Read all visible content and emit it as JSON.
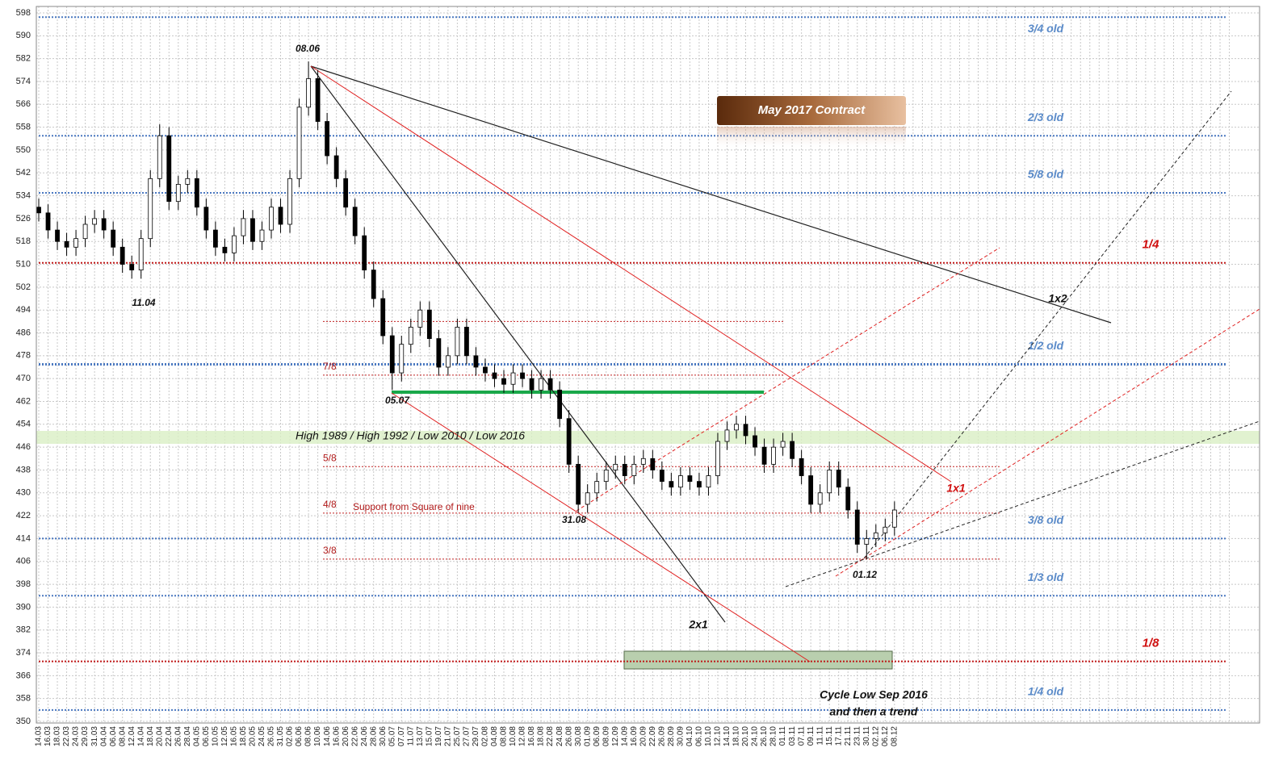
{
  "chart_data": {
    "type": "candlestick",
    "ylim": [
      350,
      598
    ],
    "yticks": [
      350,
      358,
      366,
      374,
      382,
      390,
      398,
      406,
      414,
      422,
      430,
      438,
      446,
      454,
      462,
      470,
      478,
      486,
      494,
      502,
      510,
      518,
      526,
      534,
      542,
      550,
      558,
      566,
      574,
      582,
      590,
      598
    ],
    "grid": true,
    "up_color": "#ffffff",
    "down_color": "#000000",
    "categories": [
      "14.03",
      "16.03",
      "18.03",
      "22.03",
      "24.03",
      "29.03",
      "31.03",
      "04.04",
      "06.04",
      "08.04",
      "12.04",
      "14.04",
      "18.04",
      "20.04",
      "22.04",
      "26.04",
      "28.04",
      "04.05",
      "06.05",
      "10.05",
      "12.05",
      "16.05",
      "18.05",
      "20.05",
      "24.05",
      "26.05",
      "31.05",
      "02.06",
      "06.06",
      "08.06",
      "10.06",
      "14.06",
      "16.06",
      "20.06",
      "22.06",
      "24.06",
      "28.06",
      "30.06",
      "05.07",
      "07.07",
      "11.07",
      "13.07",
      "15.07",
      "19.07",
      "21.07",
      "25.07",
      "27.07",
      "29.07",
      "02.08",
      "04.08",
      "08.08",
      "10.08",
      "12.08",
      "16.08",
      "18.08",
      "22.08",
      "24.08",
      "26.08",
      "30.08",
      "01.09",
      "06.09",
      "08.09",
      "12.09",
      "14.09",
      "16.09",
      "20.09",
      "22.09",
      "26.09",
      "28.09",
      "30.09",
      "04.10",
      "06.10",
      "10.10",
      "12.10",
      "14.10",
      "18.10",
      "20.10",
      "24.10",
      "26.10",
      "28.10",
      "01.11",
      "03.11",
      "07.11",
      "09.11",
      "11.11",
      "15.11",
      "17.11",
      "21.11",
      "23.11",
      "30.11",
      "02.12",
      "06.12",
      "08.12",
      null,
      null,
      null,
      null,
      null,
      null,
      null,
      null,
      null,
      null,
      null,
      null,
      null,
      null,
      null,
      null,
      null,
      null,
      null,
      null,
      null,
      null,
      null,
      null,
      null,
      null,
      null,
      null,
      null,
      null,
      null,
      null,
      null,
      null,
      null,
      null
    ],
    "open": [
      530,
      528,
      522,
      518,
      516,
      519,
      524,
      526,
      522,
      516,
      510,
      508,
      519,
      540,
      555,
      532,
      538,
      540,
      530,
      522,
      516,
      514,
      520,
      526,
      518,
      522,
      530,
      524,
      540,
      565,
      575,
      560,
      548,
      540,
      530,
      520,
      508,
      498,
      485,
      472,
      482,
      488,
      494,
      484,
      474,
      478,
      488,
      478,
      474,
      472,
      470,
      468,
      472,
      470,
      466,
      470,
      466,
      456,
      440,
      426,
      430,
      434,
      438,
      440,
      436,
      440,
      442,
      438,
      434,
      432,
      436,
      434,
      432,
      436,
      448,
      452,
      454,
      450,
      446,
      440,
      446,
      448,
      442,
      436,
      426,
      430,
      438,
      432,
      424,
      412,
      414,
      416,
      418,
      null,
      null,
      null,
      null,
      null,
      null,
      null,
      null,
      null,
      null,
      null,
      null,
      null,
      null,
      null,
      null,
      null,
      null,
      null,
      null,
      null,
      null,
      null,
      null,
      null,
      null,
      null,
      null,
      null,
      null,
      null,
      null,
      null,
      null,
      null,
      null
    ],
    "high": [
      533,
      531,
      525,
      521,
      522,
      527,
      529,
      529,
      525,
      519,
      513,
      522,
      543,
      559,
      558,
      541,
      543,
      543,
      533,
      525,
      519,
      523,
      529,
      529,
      525,
      533,
      533,
      543,
      568,
      581,
      578,
      563,
      551,
      543,
      533,
      523,
      511,
      501,
      488,
      485,
      491,
      497,
      497,
      487,
      481,
      491,
      491,
      481,
      477,
      475,
      473,
      475,
      475,
      473,
      473,
      473,
      469,
      459,
      443,
      433,
      437,
      441,
      443,
      443,
      443,
      445,
      445,
      441,
      437,
      439,
      439,
      437,
      439,
      451,
      455,
      457,
      457,
      453,
      449,
      449,
      451,
      451,
      445,
      439,
      433,
      441,
      441,
      435,
      427,
      417,
      419,
      421,
      427,
      null,
      null,
      null,
      null,
      null,
      null,
      null,
      null,
      null,
      null,
      null,
      null,
      null,
      null,
      null,
      null,
      null,
      null,
      null,
      null,
      null,
      null,
      null,
      null,
      null,
      null,
      null,
      null,
      null,
      null,
      null,
      null,
      null,
      null,
      null,
      null
    ],
    "low": [
      525,
      519,
      515,
      513,
      513,
      516,
      521,
      519,
      513,
      507,
      505,
      505,
      516,
      537,
      529,
      529,
      535,
      527,
      519,
      513,
      511,
      511,
      517,
      515,
      515,
      519,
      521,
      521,
      537,
      562,
      557,
      545,
      537,
      527,
      517,
      505,
      495,
      482,
      466,
      469,
      479,
      485,
      481,
      471,
      471,
      475,
      475,
      471,
      469,
      467,
      465,
      465,
      467,
      463,
      463,
      463,
      453,
      437,
      423,
      423,
      427,
      431,
      435,
      433,
      433,
      437,
      435,
      431,
      429,
      429,
      431,
      429,
      429,
      433,
      445,
      449,
      447,
      443,
      437,
      437,
      443,
      439,
      433,
      423,
      423,
      427,
      429,
      421,
      409,
      407,
      411,
      413,
      415,
      null,
      null,
      null,
      null,
      null,
      null,
      null,
      null,
      null,
      null,
      null,
      null,
      null,
      null,
      null,
      null,
      null,
      null,
      null,
      null,
      null,
      null,
      null,
      null,
      null,
      null,
      null,
      null,
      null,
      null,
      null,
      null,
      null,
      null,
      null,
      null
    ],
    "close": [
      528,
      522,
      518,
      516,
      519,
      524,
      526,
      522,
      516,
      510,
      508,
      519,
      540,
      555,
      532,
      538,
      540,
      530,
      522,
      516,
      514,
      520,
      526,
      518,
      522,
      530,
      524,
      540,
      565,
      575,
      560,
      548,
      540,
      530,
      520,
      508,
      498,
      485,
      472,
      482,
      488,
      494,
      484,
      474,
      478,
      488,
      478,
      474,
      472,
      470,
      468,
      472,
      470,
      466,
      470,
      466,
      456,
      440,
      426,
      430,
      434,
      438,
      440,
      436,
      440,
      442,
      438,
      434,
      432,
      436,
      434,
      432,
      436,
      448,
      452,
      454,
      450,
      446,
      440,
      446,
      448,
      442,
      436,
      426,
      430,
      438,
      432,
      424,
      412,
      414,
      416,
      418,
      424,
      null,
      null,
      null,
      null,
      null,
      null,
      null,
      null,
      null,
      null,
      null,
      null,
      null,
      null,
      null,
      null,
      null,
      null,
      null,
      null,
      null,
      null,
      null,
      null,
      null,
      null,
      null,
      null,
      null,
      null,
      null,
      null,
      null,
      null,
      null,
      null
    ],
    "levels": [
      {
        "label": "3/4 old",
        "value": 596.5,
        "color": "#4a78c0"
      },
      {
        "label": "2/3 old",
        "value": 555,
        "color": "#4a78c0"
      },
      {
        "label": "5/8 old",
        "value": 535,
        "color": "#4a78c0"
      },
      {
        "label": "1/4",
        "value": 510.5,
        "color": "#c01818"
      },
      {
        "label": "1/2 old",
        "value": 475,
        "color": "#4a78c0"
      },
      {
        "label": "3/8 old",
        "value": 414,
        "color": "#4a78c0"
      },
      {
        "label": "1/3 old",
        "value": 394,
        "color": "#4a78c0"
      },
      {
        "label": "1/8",
        "value": 371,
        "color": "#c01818"
      },
      {
        "label": "1/4 old",
        "value": 354,
        "color": "#4a78c0"
      }
    ],
    "octave_levels": [
      {
        "value": 490
      },
      {
        "label": "7/8",
        "value": 471.2
      },
      {
        "label": "5/8",
        "value": 439.2
      },
      {
        "label": "4/8",
        "value": 422.9
      },
      {
        "label": "3/8",
        "value": 406.8
      }
    ],
    "annotations": {
      "title": "May 2017 Contract",
      "high": "08.06",
      "low1": "11.04",
      "low2": "05.07",
      "low3": "31.08",
      "low4": "01.12",
      "fan1": "1x2",
      "fan2": "2x1",
      "fan3": "1x1",
      "support": "Support from Square of nine",
      "band": "High 1989 / High 1992 / Low 2010 / Low 2016",
      "cycle1": "Cycle Low Sep 2016",
      "cycle2": "and then a trend"
    }
  }
}
